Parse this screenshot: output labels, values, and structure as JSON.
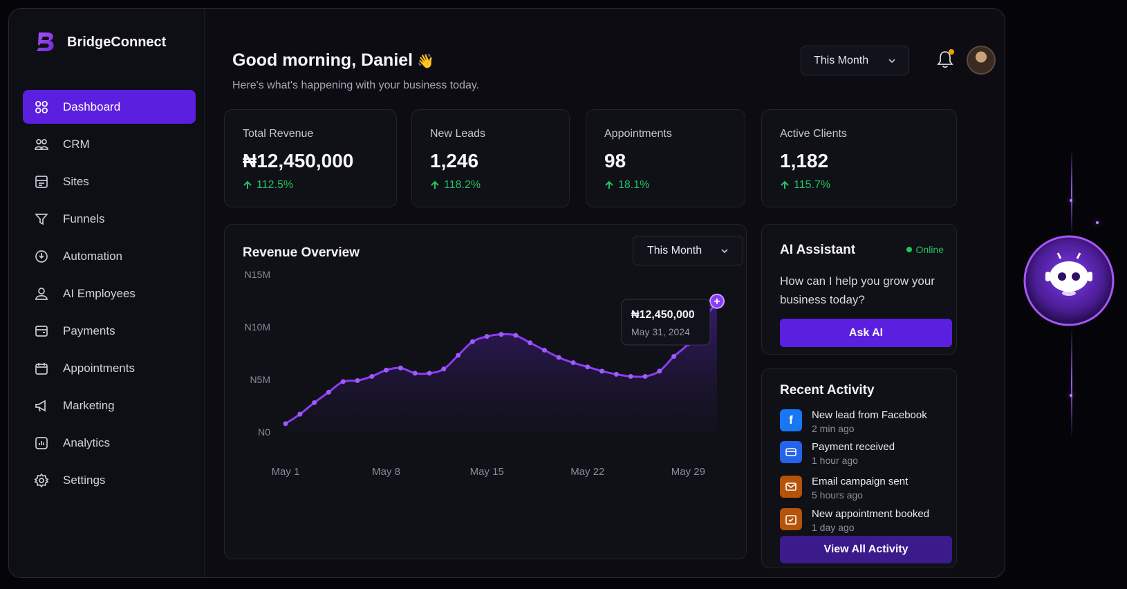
{
  "brand": {
    "name": "BridgeConnect"
  },
  "sidebar": {
    "items": [
      {
        "label": "Dashboard",
        "icon": "dashboard-icon",
        "active": true
      },
      {
        "label": "CRM",
        "icon": "users-icon"
      },
      {
        "label": "Sites",
        "icon": "layout-icon"
      },
      {
        "label": "Funnels",
        "icon": "funnel-icon"
      },
      {
        "label": "Automation",
        "icon": "automation-icon"
      },
      {
        "label": "AI Employees",
        "icon": "user-bot-icon"
      },
      {
        "label": "Payments",
        "icon": "wallet-icon"
      },
      {
        "label": "Appointments",
        "icon": "calendar-icon"
      },
      {
        "label": "Marketing",
        "icon": "megaphone-icon"
      },
      {
        "label": "Analytics",
        "icon": "analytics-icon"
      },
      {
        "label": "Settings",
        "icon": "gear-icon"
      }
    ]
  },
  "header": {
    "greeting": "Good morning, Daniel",
    "greeting_emoji": "👋",
    "subtitle": "Here's what's happening with your business today.",
    "period": "This Month"
  },
  "stats": [
    {
      "label": "Total Revenue",
      "value": "₦12,450,000",
      "delta": "112.5%"
    },
    {
      "label": "New Leads",
      "value": "1,246",
      "delta": "118.2%"
    },
    {
      "label": "Appointments",
      "value": "98",
      "delta": "18.1%"
    },
    {
      "label": "Active Clients",
      "value": "1,182",
      "delta": "115.7%"
    }
  ],
  "revenue": {
    "title": "Revenue Overview",
    "period": "This Month",
    "tooltip": {
      "value": "₦12,450,000",
      "date": "May 31, 2024"
    }
  },
  "chart_data": {
    "type": "area",
    "title": "Revenue Overview",
    "y_ticks": [
      "N15M",
      "N10M",
      "N5M",
      "N0"
    ],
    "ylim": [
      0,
      15000000
    ],
    "x_ticks": [
      "May 1",
      "May 8",
      "May 15",
      "May 22",
      "May 29"
    ],
    "x_tick_days": [
      1,
      8,
      15,
      22,
      29
    ],
    "x": [
      1,
      2,
      3,
      4,
      5,
      6,
      7,
      8,
      9,
      10,
      11,
      12,
      13,
      14,
      15,
      16,
      17,
      18,
      19,
      20,
      21,
      22,
      23,
      24,
      25,
      26,
      27,
      28,
      29,
      30,
      31
    ],
    "x_unit": "May 2024 day",
    "values": [
      800000,
      1700000,
      2800000,
      3800000,
      4800000,
      4900000,
      5300000,
      5900000,
      6100000,
      5600000,
      5600000,
      6000000,
      7300000,
      8600000,
      9100000,
      9300000,
      9200000,
      8500000,
      7800000,
      7100000,
      6600000,
      6200000,
      5800000,
      5500000,
      5300000,
      5300000,
      5800000,
      7200000,
      8400000,
      10500000,
      12450000
    ],
    "color": "#8B3CF6"
  },
  "ai": {
    "title": "AI Assistant",
    "status": "Online",
    "question": "How can I help you grow your business today?",
    "button": "Ask AI"
  },
  "activity": {
    "title": "Recent Activity",
    "items": [
      {
        "title": "New lead from Facebook",
        "time": "2 min ago",
        "icon": "facebook-icon",
        "color": "#1877F2"
      },
      {
        "title": "Payment received",
        "time": "1 hour ago",
        "icon": "payment-icon",
        "color": "#2563EB"
      },
      {
        "title": "Email campaign sent",
        "time": "5 hours ago",
        "icon": "mail-icon",
        "color": "#B45309"
      },
      {
        "title": "New appointment booked",
        "time": "1 day ago",
        "icon": "calendar-check-icon",
        "color": "#B45309"
      }
    ],
    "button": "View All Activity"
  }
}
